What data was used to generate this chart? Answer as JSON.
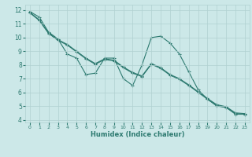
{
  "title": "",
  "xlabel": "Humidex (Indice chaleur)",
  "xlim": [
    -0.5,
    23.5
  ],
  "ylim": [
    3.8,
    12.4
  ],
  "xticks": [
    0,
    1,
    2,
    3,
    4,
    5,
    6,
    7,
    8,
    9,
    10,
    11,
    12,
    13,
    14,
    15,
    16,
    17,
    18,
    19,
    20,
    21,
    22,
    23
  ],
  "yticks": [
    4,
    5,
    6,
    7,
    8,
    9,
    10,
    11,
    12
  ],
  "bg_color": "#cce8e8",
  "grid_color": "#b0d0d0",
  "line_color": "#2d7a70",
  "line1_y": [
    11.9,
    11.5,
    10.4,
    9.9,
    8.8,
    8.5,
    7.3,
    7.4,
    8.5,
    8.5,
    7.0,
    6.5,
    8.0,
    10.0,
    10.1,
    9.6,
    8.8,
    7.5,
    6.2,
    5.5,
    5.0,
    4.9,
    4.4,
    4.4
  ],
  "line2_y": [
    11.85,
    11.3,
    10.35,
    9.85,
    9.5,
    9.0,
    8.5,
    8.1,
    8.45,
    8.35,
    7.85,
    7.45,
    7.2,
    8.1,
    7.8,
    7.3,
    7.0,
    6.55,
    6.05,
    5.55,
    5.1,
    4.95,
    4.5,
    4.45
  ],
  "line3_y": [
    11.8,
    11.25,
    10.3,
    9.8,
    9.45,
    8.95,
    8.45,
    8.05,
    8.4,
    8.3,
    7.8,
    7.4,
    7.15,
    8.05,
    7.75,
    7.25,
    6.95,
    6.5,
    6.0,
    5.5,
    5.05,
    4.9,
    4.45,
    4.4
  ]
}
